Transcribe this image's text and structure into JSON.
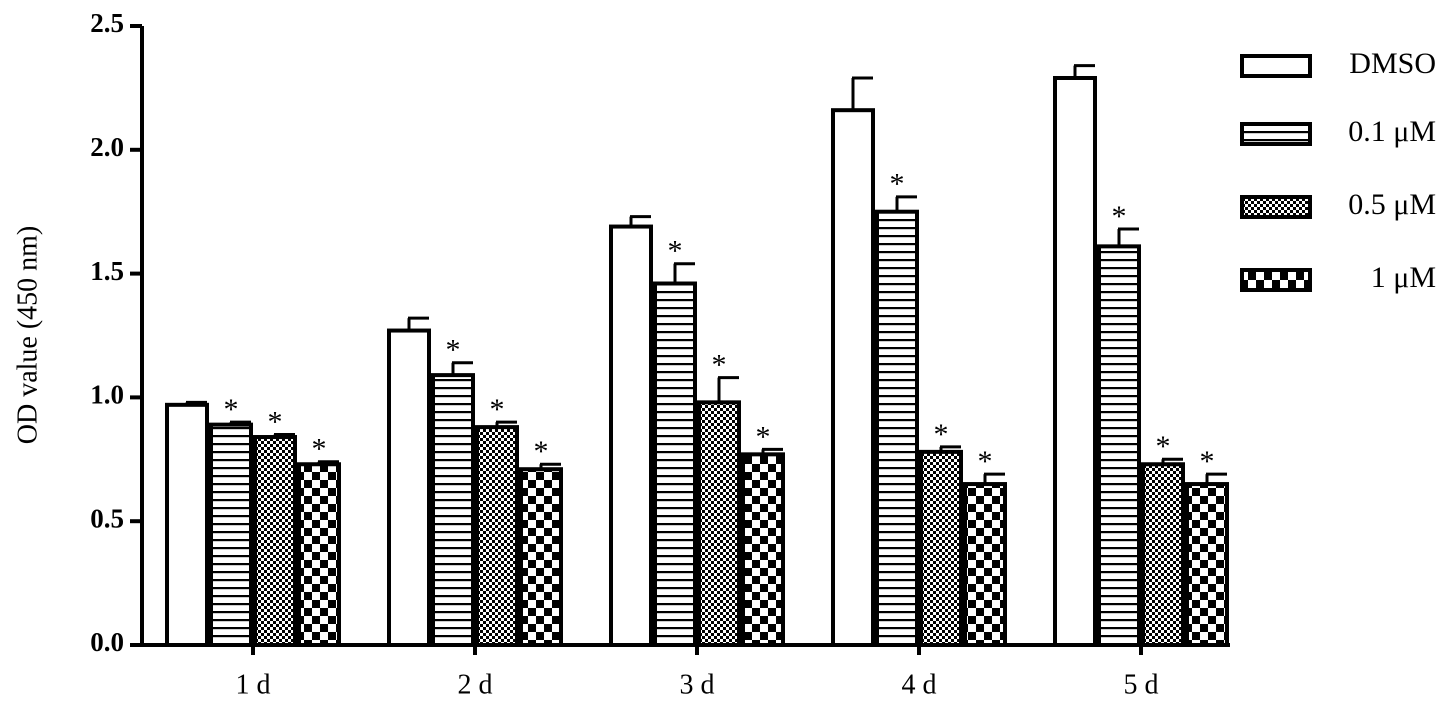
{
  "chart_data": {
    "type": "bar",
    "ylabel": "OD value (450 nm)",
    "categories": [
      "1 d",
      "2 d",
      "3 d",
      "4 d",
      "5 d"
    ],
    "ylim": [
      0,
      2.5
    ],
    "yticks": [
      {
        "value": 0,
        "label": "0.0"
      },
      0.5,
      {
        "value": 1,
        "label": "1.0"
      },
      1.5,
      {
        "value": 2,
        "label": "2.0"
      },
      2.5
    ],
    "series": [
      {
        "name": "DMSO",
        "color": "#000000",
        "pattern": "none",
        "values": [
          0.97,
          1.27,
          1.69,
          2.16,
          2.29
        ],
        "errors": [
          0.01,
          0.05,
          0.04,
          0.13,
          0.05
        ]
      },
      {
        "name": "0.1 μM",
        "color": "#000000",
        "pattern": "hlines",
        "values": [
          0.89,
          1.09,
          1.46,
          1.75,
          1.61
        ],
        "errors": [
          0.01,
          0.05,
          0.08,
          0.06,
          0.07
        ],
        "significance": [
          "*",
          "*",
          "*",
          "*",
          "*"
        ]
      },
      {
        "name": "0.5 μM",
        "color": "#000000",
        "pattern": "dots",
        "values": [
          0.84,
          0.88,
          0.98,
          0.78,
          0.73
        ],
        "errors": [
          0.01,
          0.02,
          0.1,
          0.02,
          0.02
        ],
        "significance": [
          "*",
          "*",
          "*",
          "*",
          "*"
        ]
      },
      {
        "name": "1 μM",
        "color": "#000000",
        "pattern": "checker",
        "values": [
          0.73,
          0.71,
          0.77,
          0.65,
          0.65
        ],
        "errors": [
          0.01,
          0.02,
          0.02,
          0.04,
          0.04
        ],
        "significance": [
          "*",
          "*",
          "*",
          "*",
          "*"
        ]
      }
    ]
  }
}
